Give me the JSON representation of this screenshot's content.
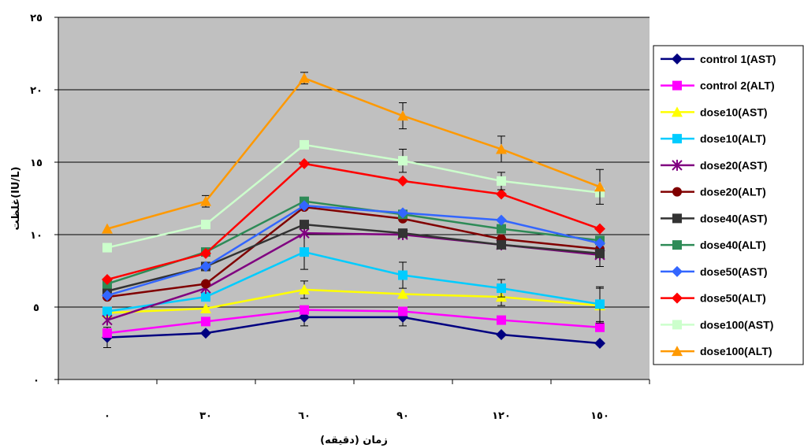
{
  "chart_data": {
    "type": "line",
    "x": [
      0,
      30,
      60,
      90,
      120,
      150
    ],
    "x_tick_labels": [
      "٠",
      "٣٠",
      "٦٠",
      "٩٠",
      "١٢٠",
      "١٥٠"
    ],
    "y_tick_labels": [
      "٠",
      "٥",
      "١٠",
      "١٥",
      "٢٠",
      "٢٥"
    ],
    "y_ticks": [
      0,
      5,
      10,
      15,
      20,
      25
    ],
    "ylim": [
      0,
      25
    ],
    "xlabel": "زمان (دقيقه)",
    "ylabel": "غلظت(IU/L)",
    "grid": "horizontal",
    "legend_position": "right",
    "plot_background": "#c0c0c0",
    "series": [
      {
        "name": "control 1(AST)",
        "color": "#000080",
        "marker": "diamond",
        "values": [
          2.9,
          3.2,
          4.3,
          4.3,
          3.1,
          2.5
        ],
        "errors": [
          0.7,
          0,
          0.6,
          0.6,
          0,
          0
        ]
      },
      {
        "name": "control 2(ALT)",
        "color": "#ff00ff",
        "marker": "square",
        "values": [
          3.2,
          4.0,
          4.8,
          4.7,
          4.1,
          3.6
        ],
        "errors": [
          0,
          0,
          0,
          0,
          0,
          0
        ]
      },
      {
        "name": "dose10(AST)",
        "color": "#ffff00",
        "marker": "triangle",
        "values": [
          4.6,
          4.9,
          6.2,
          5.9,
          5.7,
          5.1
        ],
        "errors": [
          0,
          0,
          0.6,
          0,
          0.6,
          1.2
        ]
      },
      {
        "name": "dose10(ALT)",
        "color": "#00ccff",
        "marker": "square",
        "values": [
          4.7,
          5.7,
          8.8,
          7.2,
          6.3,
          5.2
        ],
        "errors": [
          0,
          0,
          1.2,
          0.9,
          0.6,
          1.2
        ]
      },
      {
        "name": "dose20(AST)",
        "color": "#800080",
        "marker": "star",
        "values": [
          4.1,
          6.3,
          10.1,
          10.0,
          9.3,
          8.6
        ],
        "errors": [
          0,
          0,
          0,
          0,
          0,
          0.8
        ]
      },
      {
        "name": "dose20(ALT)",
        "color": "#800000",
        "marker": "circle",
        "values": [
          5.7,
          6.6,
          11.9,
          11.1,
          9.7,
          9.0
        ],
        "errors": [
          0,
          0,
          0,
          0,
          0,
          0
        ]
      },
      {
        "name": "dose40(AST)",
        "color": "#333333",
        "marker": "square",
        "values": [
          6.1,
          7.8,
          10.7,
          10.1,
          9.3,
          8.7
        ],
        "errors": [
          0,
          0,
          0,
          0,
          0,
          0
        ]
      },
      {
        "name": "dose40(ALT)",
        "color": "#2e8b57",
        "marker": "square",
        "values": [
          6.6,
          8.8,
          12.3,
          11.4,
          10.4,
          9.6
        ],
        "errors": [
          0,
          0,
          0,
          0,
          0,
          0
        ]
      },
      {
        "name": "dose50(AST)",
        "color": "#3366ff",
        "marker": "diamond",
        "values": [
          5.8,
          7.8,
          12.0,
          11.5,
          11.0,
          9.4
        ],
        "errors": [
          0,
          0,
          0,
          0,
          0,
          0
        ]
      },
      {
        "name": "dose50(ALT)",
        "color": "#ff0000",
        "marker": "diamond",
        "values": [
          6.9,
          8.7,
          14.9,
          13.7,
          12.8,
          10.4
        ],
        "errors": [
          0,
          0,
          0,
          0,
          0,
          0
        ]
      },
      {
        "name": "dose100(AST)",
        "color": "#ccffcc",
        "marker": "square",
        "values": [
          9.1,
          10.7,
          16.2,
          15.1,
          13.7,
          12.9
        ],
        "errors": [
          0,
          0,
          0,
          0.8,
          0.6,
          0
        ]
      },
      {
        "name": "dose100(ALT)",
        "color": "#ff9900",
        "marker": "triangle",
        "values": [
          10.4,
          12.3,
          20.8,
          18.2,
          15.9,
          13.3
        ],
        "errors": [
          0,
          0.4,
          0.4,
          0.9,
          0.9,
          1.2
        ]
      }
    ]
  }
}
